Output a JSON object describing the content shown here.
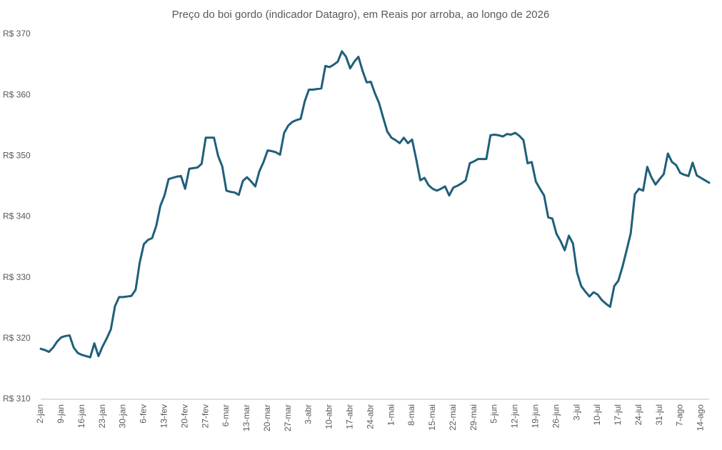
{
  "chart_data": {
    "type": "line",
    "title": "Preço do boi gordo (indicador Datagro), em Reais por arroba, ao longo de 2026",
    "categories": [
      "2-jan",
      null,
      null,
      null,
      null,
      "9-jan",
      null,
      null,
      null,
      null,
      "16-jan",
      null,
      null,
      null,
      null,
      "23-jan",
      null,
      null,
      null,
      null,
      "30-jan",
      null,
      null,
      null,
      null,
      "6-fev",
      null,
      null,
      null,
      null,
      "13-fev",
      null,
      null,
      null,
      null,
      "20-fev",
      null,
      null,
      null,
      null,
      "27-fev",
      null,
      null,
      null,
      null,
      "6-mar",
      null,
      null,
      null,
      null,
      "13-mar",
      null,
      null,
      null,
      null,
      "20-mar",
      null,
      null,
      null,
      null,
      "27-mar",
      null,
      null,
      null,
      null,
      "3-abr",
      null,
      null,
      null,
      null,
      "10-abr",
      null,
      null,
      null,
      null,
      "17-abr",
      null,
      null,
      null,
      null,
      "24-abr",
      null,
      null,
      null,
      null,
      "1-mai",
      null,
      null,
      null,
      null,
      "8-mai",
      null,
      null,
      null,
      null,
      "15-mai",
      null,
      null,
      null,
      null,
      "22-mai",
      null,
      null,
      null,
      null,
      "29-mai",
      null,
      null,
      null,
      null,
      "5-jun",
      null,
      null,
      null,
      null,
      "12-jun",
      null,
      null,
      null,
      null,
      "19-jun",
      null,
      null,
      null,
      null,
      "26-jun",
      null,
      null,
      null,
      null,
      "3-jul",
      null,
      null,
      null,
      null,
      "10-jul",
      null,
      null,
      null,
      null,
      "17-jul",
      null,
      null,
      null,
      null,
      "24-jul",
      null,
      null,
      null,
      null,
      "31-jul",
      null,
      null,
      null,
      null,
      "7-ago",
      null,
      null,
      null,
      null,
      "14-ago",
      null,
      null
    ],
    "values": [
      318.3,
      318.1,
      317.8,
      318.5,
      319.5,
      320.2,
      320.4,
      320.5,
      318.5,
      317.6,
      317.3,
      317.1,
      316.9,
      319.2,
      317.1,
      318.7,
      320,
      321.5,
      325.3,
      326.8,
      326.8,
      326.9,
      327,
      328,
      332.5,
      335.5,
      336.2,
      336.5,
      338.5,
      341.8,
      343.5,
      346.2,
      346.4,
      346.6,
      346.7,
      344.6,
      347.9,
      348,
      348.1,
      348.7,
      353,
      353,
      353,
      350,
      348.3,
      344.3,
      344.1,
      344,
      343.6,
      345.9,
      346.5,
      345.8,
      345,
      347.5,
      349,
      350.9,
      350.8,
      350.6,
      350.2,
      353.8,
      355,
      355.6,
      355.9,
      356.1,
      359,
      360.9,
      360.9,
      361,
      361.1,
      364.8,
      364.6,
      365,
      365.5,
      367.2,
      366.3,
      364.4,
      365.5,
      366.3,
      364,
      362.1,
      362.2,
      360.3,
      358.7,
      356.3,
      354,
      353,
      352.6,
      352.1,
      353,
      352.1,
      352.7,
      349.5,
      346,
      346.4,
      345.2,
      344.6,
      344.3,
      344.6,
      345,
      343.5,
      344.8,
      345.1,
      345.5,
      346,
      348.8,
      349.1,
      349.5,
      349.5,
      349.5,
      353.4,
      353.5,
      353.4,
      353.2,
      353.6,
      353.5,
      353.8,
      353.3,
      352.6,
      348.8,
      349,
      345.8,
      344.6,
      343.5,
      339.9,
      339.7,
      337.2,
      336,
      334.5,
      336.9,
      335.6,
      330.8,
      328.6,
      327.7,
      326.9,
      327.6,
      327.2,
      326.3,
      325.7,
      325.2,
      328.6,
      329.5,
      331.8,
      334.5,
      337.3,
      343.7,
      344.6,
      344.3,
      348.2,
      346.5,
      345.3,
      346.2,
      347,
      350.4,
      349,
      348.5,
      347.2,
      346.9,
      346.7,
      348.9,
      346.8,
      346.4,
      346,
      345.6
    ],
    "color": "#1f5f7a",
    "ylim": [
      310,
      370
    ],
    "yticks": [
      {
        "value": 310,
        "label": "R$ 310"
      },
      {
        "value": 320,
        "label": "R$ 320"
      },
      {
        "value": 330,
        "label": "R$ 330"
      },
      {
        "value": 340,
        "label": "R$ 340"
      },
      {
        "value": 350,
        "label": "R$ 350"
      },
      {
        "value": 360,
        "label": "R$ 360"
      },
      {
        "value": 370,
        "label": "R$ 370"
      }
    ],
    "grid": false
  }
}
